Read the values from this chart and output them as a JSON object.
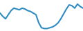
{
  "x": [
    0,
    1,
    2,
    3,
    4,
    5,
    6,
    7,
    8,
    9,
    10,
    11,
    12,
    13,
    14,
    15,
    16,
    17,
    18,
    19,
    20,
    21,
    22,
    23,
    24,
    25,
    26,
    27,
    28,
    29,
    30
  ],
  "y": [
    22,
    18,
    15,
    20,
    25,
    28,
    27,
    26,
    28,
    27,
    25,
    24,
    22,
    20,
    10,
    4,
    3,
    3,
    4,
    5,
    7,
    10,
    15,
    21,
    27,
    32,
    31,
    28,
    33,
    30,
    28
  ],
  "line_color": "#2e8bc4",
  "linewidth": 1.5,
  "background_color": "#ffffff",
  "ylim": [
    0,
    38
  ],
  "xlim": [
    0,
    30
  ]
}
